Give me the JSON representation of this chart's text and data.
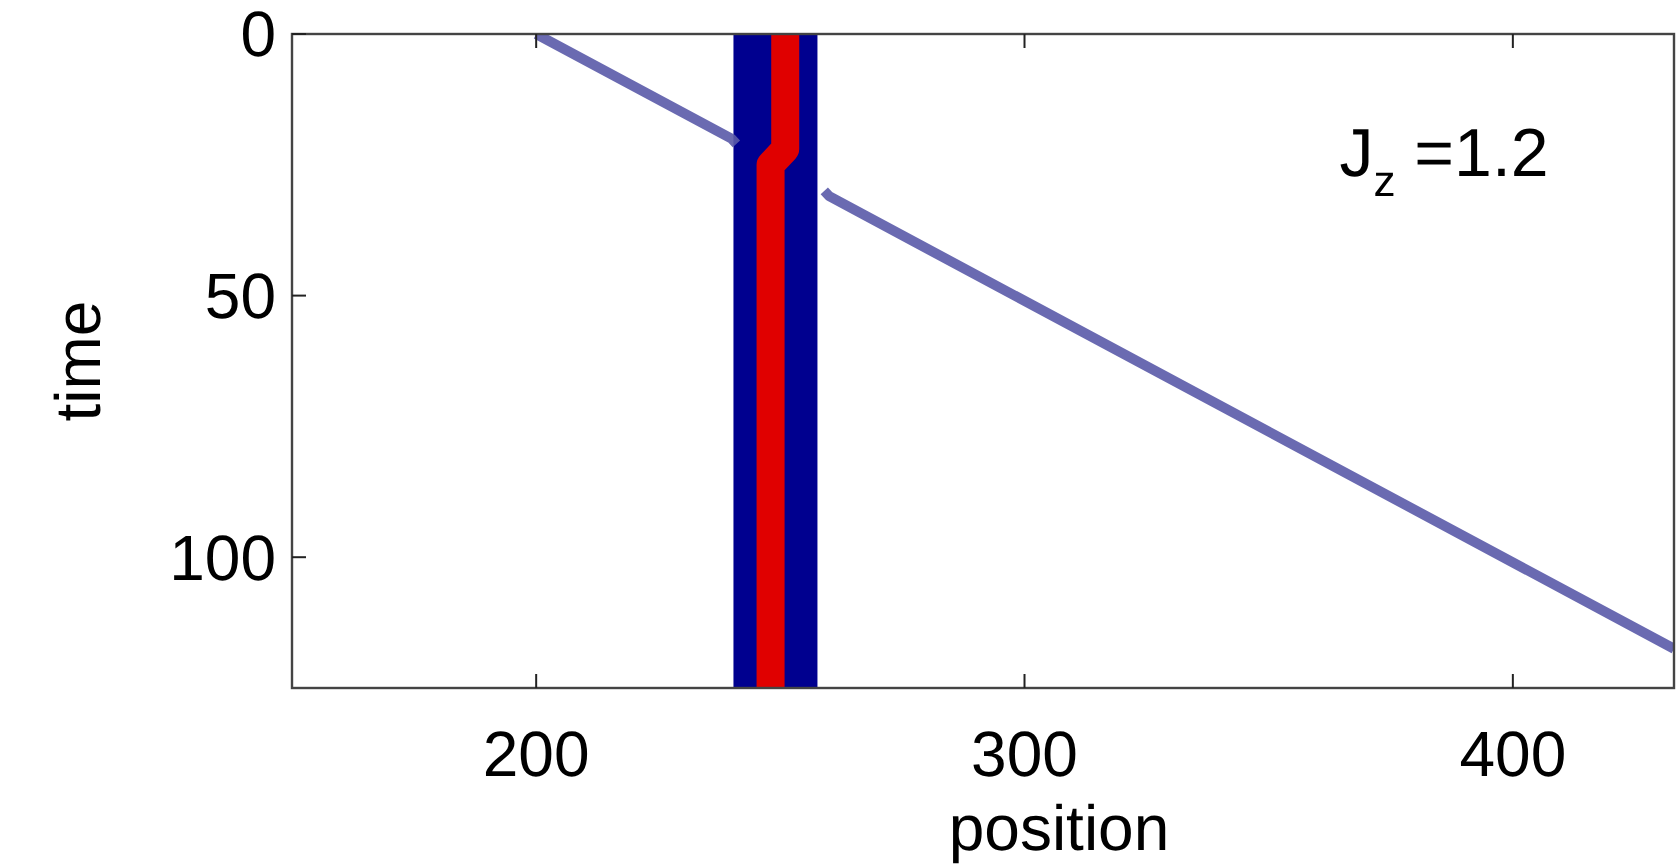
{
  "chart_data": {
    "type": "line",
    "xlabel": "position",
    "ylabel": "time",
    "xlim": [
      150,
      433
    ],
    "xticks": [
      200,
      300,
      400
    ],
    "ylim": [
      125,
      0
    ],
    "yticks": [
      0,
      50,
      100
    ],
    "series": [
      {
        "color": "#00008f",
        "x": [
          249,
          249
        ],
        "values": [
          0,
          125
        ]
      },
      {
        "color": "#e00000",
        "x": [
          251,
          251,
          248,
          248
        ],
        "values": [
          0,
          22,
          25,
          125
        ]
      },
      {
        "color": "#5a5aa8",
        "x": [
          200,
          240,
          241
        ],
        "values": [
          0,
          20,
          21
        ]
      },
      {
        "color": "#5a5aa8",
        "x": [
          259,
          260,
          433
        ],
        "values": [
          30,
          31,
          117.5
        ]
      }
    ],
    "annotations": [
      "J$_{z}$ =1.2"
    ],
    "marker": "none",
    "line_style": "solid",
    "grid": false
  }
}
